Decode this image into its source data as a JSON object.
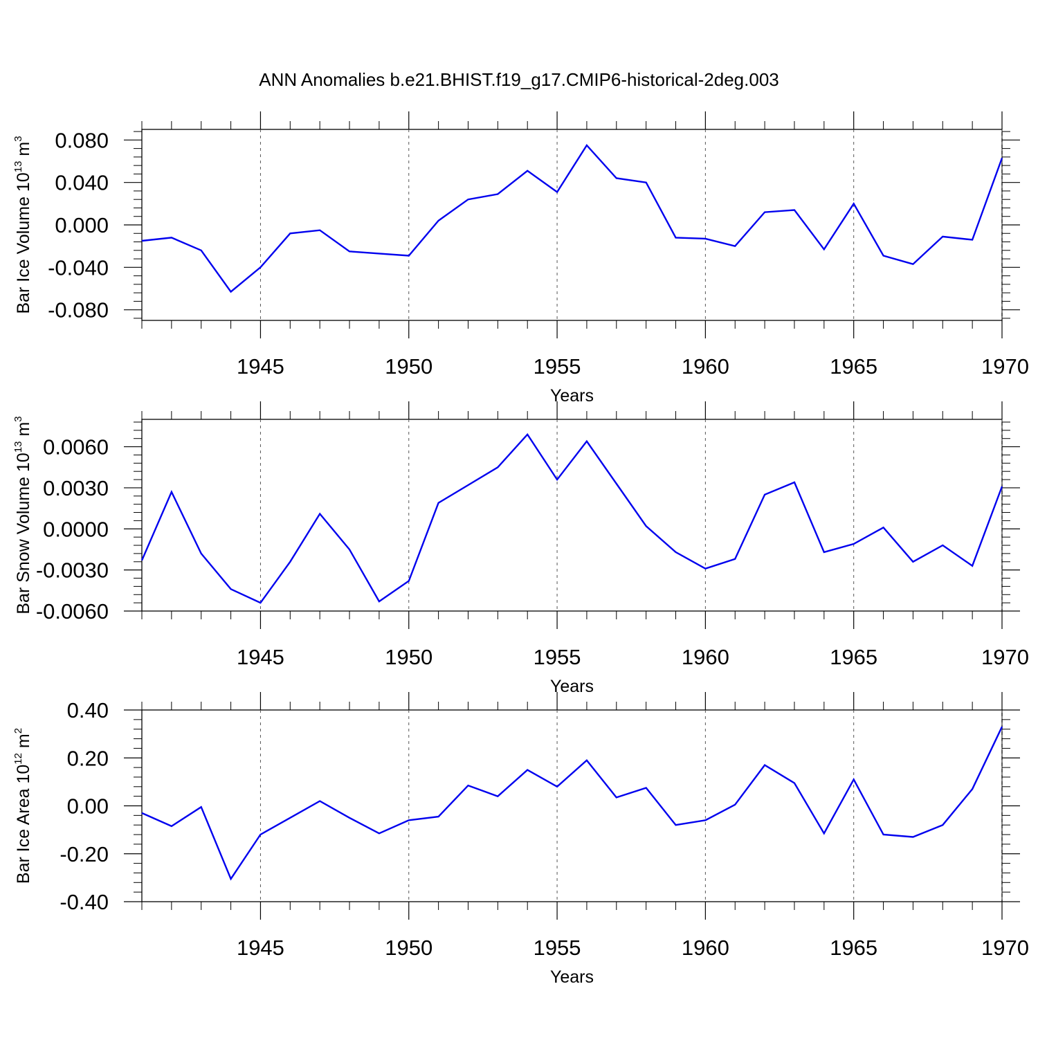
{
  "title": "ANN Anomalies b.e21.BHIST.f19_g17.CMIP6-historical-2deg.003",
  "chart_data": [
    {
      "type": "line",
      "xlabel": "Years",
      "ylabel": {
        "text": "Bar Ice Volume 10",
        "exp": "13",
        "unit": " m",
        "unit_exp": "3"
      },
      "xlim": [
        1941,
        1970
      ],
      "ylim": [
        -0.09,
        0.09
      ],
      "xticks": [
        1945,
        1950,
        1955,
        1960,
        1965,
        1970
      ],
      "xtick_labels": [
        "1945",
        "1950",
        "1955",
        "1960",
        "1965",
        "1970"
      ],
      "yticks": [
        -0.08,
        -0.04,
        0.0,
        0.04,
        0.08
      ],
      "ytick_labels": [
        "-0.080",
        "-0.040",
        "0.000",
        "0.040",
        "0.080"
      ],
      "grid_x": true,
      "line_color": "#0000ee",
      "x": [
        1941,
        1942,
        1943,
        1944,
        1945,
        1946,
        1947,
        1948,
        1949,
        1950,
        1951,
        1952,
        1953,
        1954,
        1955,
        1956,
        1957,
        1958,
        1959,
        1960,
        1961,
        1962,
        1963,
        1964,
        1965,
        1966,
        1967,
        1968,
        1969,
        1970
      ],
      "y": [
        -0.015,
        -0.012,
        -0.024,
        -0.063,
        -0.04,
        -0.008,
        -0.005,
        -0.025,
        -0.027,
        -0.029,
        0.004,
        0.024,
        0.029,
        0.051,
        0.031,
        0.075,
        0.044,
        0.04,
        -0.012,
        -0.013,
        -0.02,
        0.012,
        0.014,
        -0.023,
        0.02,
        -0.029,
        -0.037,
        -0.011,
        -0.014,
        0.063
      ]
    },
    {
      "type": "line",
      "xlabel": "Years",
      "ylabel": {
        "text": "Bar Snow Volume 10",
        "exp": "13",
        "unit": " m",
        "unit_exp": "3"
      },
      "xlim": [
        1941,
        1970
      ],
      "ylim": [
        -0.006,
        0.008
      ],
      "xticks": [
        1945,
        1950,
        1955,
        1960,
        1965,
        1970
      ],
      "xtick_labels": [
        "1945",
        "1950",
        "1955",
        "1960",
        "1965",
        "1970"
      ],
      "yticks": [
        -0.006,
        -0.003,
        0.0,
        0.003,
        0.006
      ],
      "ytick_labels": [
        "-0.0060",
        "-0.0030",
        "0.0000",
        "0.0030",
        "0.0060"
      ],
      "grid_x": true,
      "line_color": "#0000ee",
      "x": [
        1941,
        1942,
        1943,
        1944,
        1945,
        1946,
        1947,
        1948,
        1949,
        1950,
        1951,
        1952,
        1953,
        1954,
        1955,
        1956,
        1957,
        1958,
        1959,
        1960,
        1961,
        1962,
        1963,
        1964,
        1965,
        1966,
        1967,
        1968,
        1969,
        1970
      ],
      "y": [
        -0.0023,
        0.0027,
        -0.0018,
        -0.0044,
        -0.0054,
        -0.0024,
        0.0011,
        -0.0015,
        -0.0053,
        -0.0038,
        0.0019,
        0.0032,
        0.0045,
        0.0069,
        0.0036,
        0.0064,
        0.0033,
        0.0002,
        -0.0017,
        -0.0029,
        -0.0022,
        0.0025,
        0.0034,
        -0.0017,
        -0.0011,
        0.0001,
        -0.0024,
        -0.0012,
        -0.0027,
        0.0031
      ]
    },
    {
      "type": "line",
      "xlabel": "Years",
      "ylabel": {
        "text": "Bar Ice Area 10",
        "exp": "12",
        "unit": " m",
        "unit_exp": "2"
      },
      "xlim": [
        1941,
        1970
      ],
      "ylim": [
        -0.4,
        0.4
      ],
      "xticks": [
        1945,
        1950,
        1955,
        1960,
        1965,
        1970
      ],
      "xtick_labels": [
        "1945",
        "1950",
        "1955",
        "1960",
        "1965",
        "1970"
      ],
      "yticks": [
        -0.4,
        -0.2,
        0.0,
        0.2,
        0.4
      ],
      "ytick_labels": [
        "-0.40",
        "-0.20",
        "0.00",
        "0.20",
        "0.40"
      ],
      "grid_x": true,
      "line_color": "#0000ee",
      "x": [
        1941,
        1942,
        1943,
        1944,
        1945,
        1946,
        1947,
        1948,
        1949,
        1950,
        1951,
        1952,
        1953,
        1954,
        1955,
        1956,
        1957,
        1958,
        1959,
        1960,
        1961,
        1962,
        1963,
        1964,
        1965,
        1966,
        1967,
        1968,
        1969,
        1970
      ],
      "y": [
        -0.03,
        -0.085,
        -0.005,
        -0.305,
        -0.12,
        -0.05,
        0.02,
        -0.05,
        -0.115,
        -0.06,
        -0.045,
        0.085,
        0.04,
        0.15,
        0.08,
        0.19,
        0.035,
        0.075,
        -0.08,
        -0.06,
        0.005,
        0.17,
        0.095,
        -0.115,
        0.11,
        -0.12,
        -0.13,
        -0.08,
        0.07,
        0.33
      ]
    }
  ]
}
